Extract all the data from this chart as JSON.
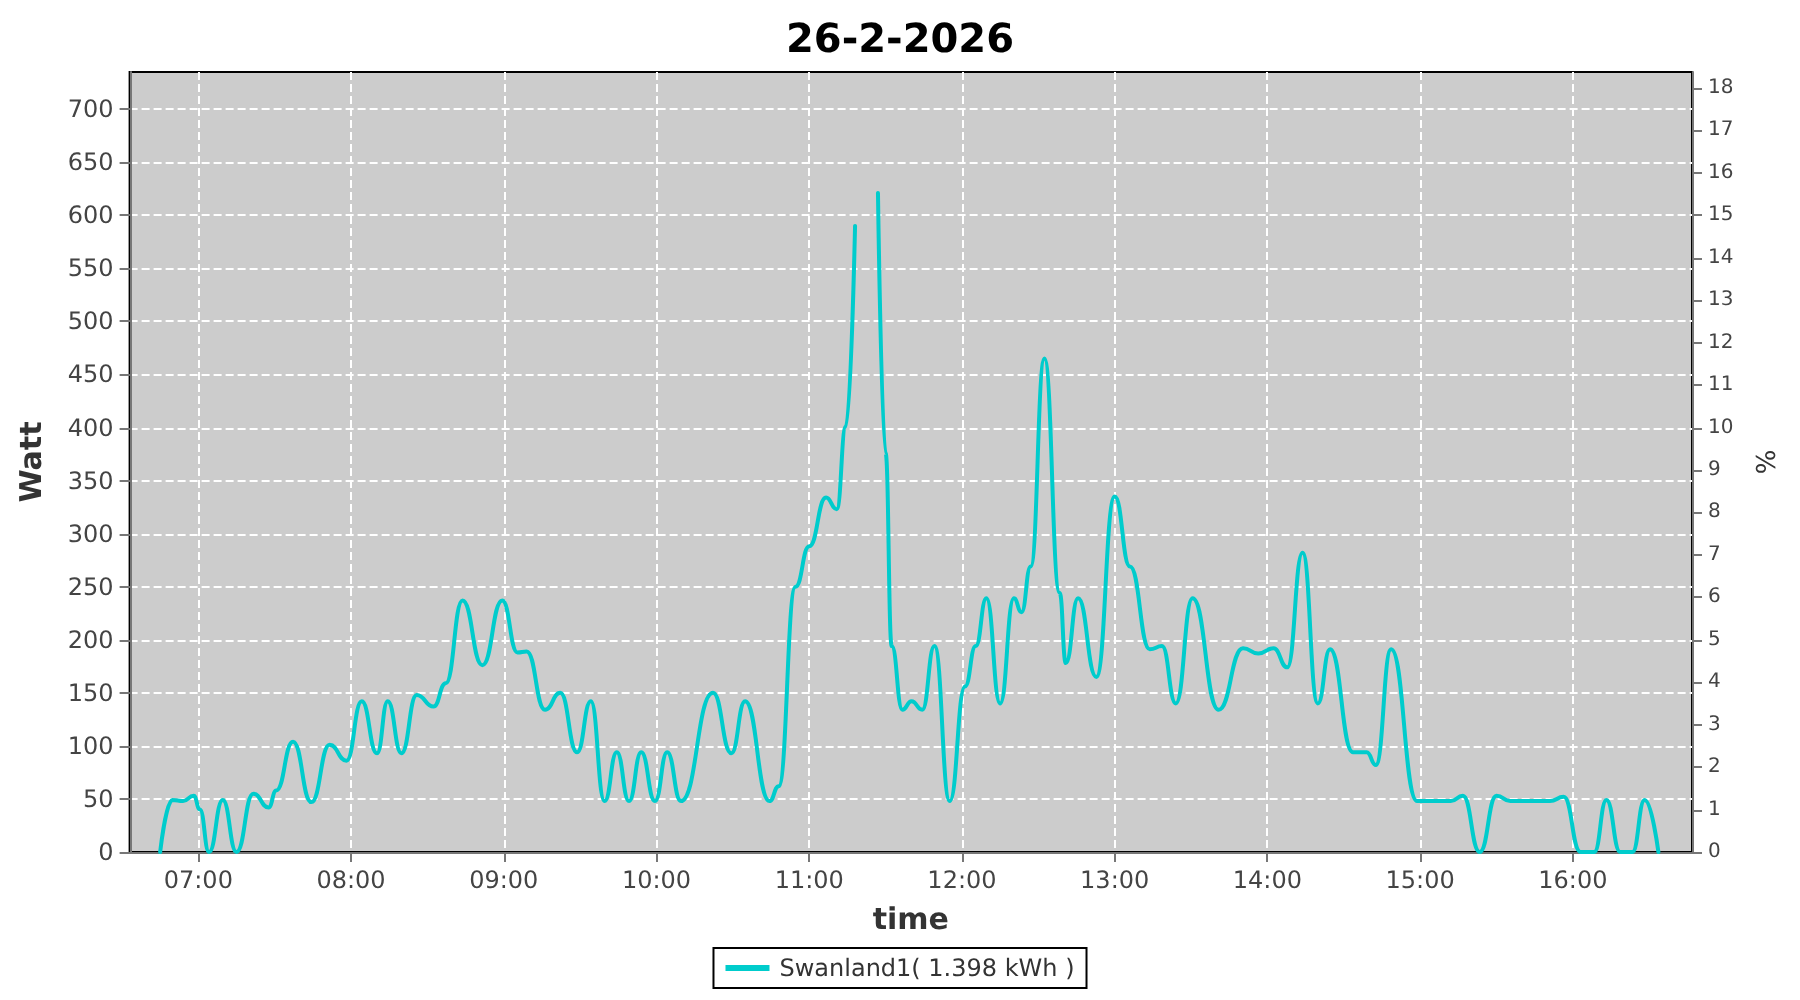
{
  "chart_data": {
    "type": "line",
    "title": "26-2-2026",
    "xlabel": "time",
    "ylabel": "Watt",
    "y2label": "%",
    "xlim": [
      6.55,
      16.78
    ],
    "xticks": [
      {
        "value": 7,
        "label": "07:00"
      },
      {
        "value": 8,
        "label": "08:00"
      },
      {
        "value": 9,
        "label": "09:00"
      },
      {
        "value": 10,
        "label": "10:00"
      },
      {
        "value": 11,
        "label": "11:00"
      },
      {
        "value": 12,
        "label": "12:00"
      },
      {
        "value": 13,
        "label": "13:00"
      },
      {
        "value": 14,
        "label": "14:00"
      },
      {
        "value": 15,
        "label": "15:00"
      },
      {
        "value": 16,
        "label": "16:00"
      }
    ],
    "ylim": [
      0,
      735
    ],
    "yticks": [
      0,
      50,
      100,
      150,
      200,
      250,
      300,
      350,
      400,
      450,
      500,
      550,
      600,
      650,
      700
    ],
    "y2lim": [
      0,
      18.375
    ],
    "y2ticks": [
      0,
      1,
      2,
      3,
      4,
      5,
      6,
      7,
      8,
      9,
      10,
      11,
      12,
      13,
      14,
      15,
      16,
      17,
      18
    ],
    "grid": true,
    "legend": "bottom",
    "marker": "none",
    "line_style": "solid",
    "series": [
      {
        "name": "Swanland1( 1.398 kWh )",
        "color": "#00cccc",
        "x": [
          6.75,
          6.83,
          6.9,
          6.97,
          7.01,
          7.07,
          7.16,
          7.25,
          7.36,
          7.46,
          7.51,
          7.62,
          7.74,
          7.86,
          7.97,
          8.07,
          8.17,
          8.24,
          8.33,
          8.43,
          8.54,
          8.62,
          8.73,
          8.86,
          8.99,
          9.09,
          9.15,
          9.27,
          9.37,
          9.48,
          9.57,
          9.66,
          9.74,
          9.82,
          9.9,
          9.99,
          10.07,
          10.16,
          10.37,
          10.49,
          10.58,
          10.74,
          10.8,
          10.91,
          11.0,
          11.11,
          11.18,
          11.24,
          11.3,
          11.37,
          11.39,
          11.45,
          11.5,
          11.54,
          11.61,
          11.67,
          11.74,
          11.82,
          11.92,
          12.02,
          12.09,
          12.16,
          12.25,
          12.34,
          12.39,
          12.45,
          12.54,
          12.64,
          12.68,
          12.76,
          12.88,
          13.0,
          13.1,
          13.23,
          13.31,
          13.4,
          13.51,
          13.68,
          13.84,
          13.94,
          14.04,
          14.13,
          14.23,
          14.33,
          14.41,
          14.56,
          14.65,
          14.71,
          14.81,
          14.98,
          15.2,
          15.28,
          15.39,
          15.5,
          15.59,
          15.85,
          15.94,
          16.05,
          16.14,
          16.22,
          16.31,
          16.39,
          16.47,
          16.56
        ],
        "values": [
          0,
          49,
          48,
          53,
          40,
          0,
          49,
          0,
          55,
          42,
          58,
          104,
          47,
          101,
          86,
          142,
          93,
          142,
          93,
          148,
          137,
          159,
          237,
          176,
          237,
          188,
          189,
          134,
          150,
          94,
          142,
          48,
          94,
          48,
          94,
          48,
          94,
          48,
          150,
          93,
          142,
          48,
          62,
          250,
          288,
          334,
          323,
          401,
          590,
          null,
          null,
          621,
          376,
          194,
          134,
          142,
          134,
          194,
          48,
          156,
          194,
          239,
          140,
          239,
          226,
          269,
          465,
          244,
          178,
          239,
          165,
          335,
          269,
          191,
          194,
          140,
          239,
          134,
          192,
          187,
          192,
          174,
          282,
          140,
          191,
          94,
          94,
          82,
          191,
          48,
          48,
          53,
          0,
          53,
          48,
          48,
          52,
          0,
          0,
          49,
          0,
          0,
          49,
          0
        ]
      }
    ]
  }
}
